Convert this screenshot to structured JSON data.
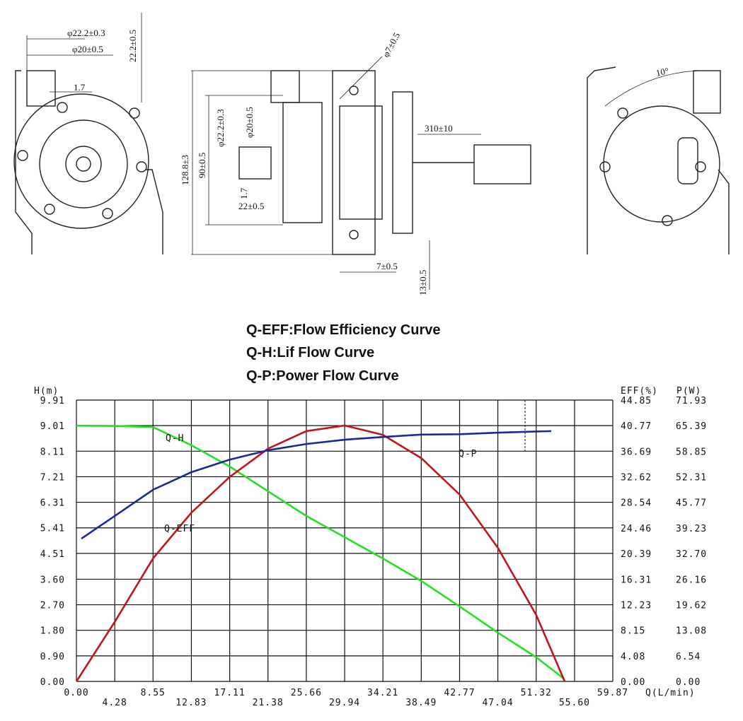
{
  "drawings": {
    "front": [
      "φ22.2±0.3",
      "φ20±0.5",
      "22.2±0.5",
      "1.7"
    ],
    "side": [
      "φ7±0.5",
      "128.8±3",
      "90±0.5",
      "φ22.2±0.3",
      "φ20±0.5",
      "1.7",
      "22±0.5",
      "310±10",
      "7±0.5",
      "13±0.5"
    ],
    "back": [
      "10°"
    ]
  },
  "chart_data": {
    "type": "line",
    "titles": [
      "Q-EFF:Flow Efficiency Curve",
      "Q-H:Lif Flow Curve",
      "Q-P:Power Flow Curve"
    ],
    "x_label": "Q(L/min)",
    "y_label": "H(m)",
    "y2_label": "EFF(%)",
    "y3_label": "P(W)",
    "grid": true,
    "xlim": [
      0,
      59.87
    ],
    "xticks": [
      {
        "value": 0,
        "label": "0.00"
      },
      4.28,
      8.55,
      12.83,
      17.11,
      21.38,
      25.66,
      29.94,
      34.21,
      38.49,
      42.77,
      47.04,
      51.32,
      {
        "value": 55.6,
        "label": "55.60"
      },
      59.87
    ],
    "ylim": [
      0,
      9.91
    ],
    "yticks": [
      {
        "value": 0,
        "label": "0.00"
      },
      {
        "value": 0.9,
        "label": "0.90"
      },
      {
        "value": 1.8,
        "label": "1.80"
      },
      {
        "value": 2.7,
        "label": "2.70"
      },
      {
        "value": 3.6,
        "label": "3.60"
      },
      4.51,
      5.41,
      6.31,
      7.21,
      8.11,
      9.01,
      9.91
    ],
    "y2lim": [
      0,
      44.85
    ],
    "y2ticks": [
      {
        "value": 0,
        "label": "0.00"
      },
      4.08,
      8.15,
      12.23,
      16.31,
      20.39,
      24.46,
      28.54,
      32.62,
      36.69,
      40.77,
      44.85
    ],
    "y3lim": [
      0,
      71.93
    ],
    "y3ticks": [
      {
        "value": 0,
        "label": "0.00"
      },
      6.54,
      13.08,
      19.62,
      26.16,
      {
        "value": 32.7,
        "label": "32.70"
      },
      39.23,
      45.77,
      52.31,
      58.85,
      65.39,
      71.93
    ],
    "series": [
      {
        "name": "Q-H",
        "color": "#22e022",
        "axis": "y",
        "x": [
          0,
          4.28,
          8.55,
          12.83,
          17.11,
          21.38,
          25.66,
          29.94,
          34.21,
          38.49,
          42.77,
          47.04,
          51.32,
          54.4
        ],
        "values": [
          9.01,
          9.0,
          8.96,
          8.32,
          7.57,
          6.7,
          5.83,
          5.08,
          4.33,
          3.54,
          2.64,
          1.72,
          0.85,
          0.1
        ]
      },
      {
        "name": "Q-EFF",
        "color": "#c0141e",
        "axis": "y2",
        "x": [
          0,
          4.28,
          8.55,
          12.83,
          17.11,
          21.38,
          25.66,
          29.94,
          34.21,
          38.49,
          42.77,
          47.04,
          51.32,
          54.5
        ],
        "values": [
          0,
          9.5,
          19.6,
          26.9,
          32.6,
          37.1,
          39.9,
          40.8,
          39.3,
          35.6,
          29.8,
          21.3,
          10.6,
          0
        ]
      },
      {
        "name": "Q-P",
        "color": "#1a2a9a",
        "axis": "y3",
        "x": [
          0.55,
          4.28,
          8.55,
          12.83,
          17.11,
          21.38,
          25.66,
          29.94,
          34.21,
          38.49,
          42.77,
          47.04,
          53.0
        ],
        "values": [
          36.5,
          42.3,
          49.0,
          53.5,
          56.7,
          59.1,
          60.7,
          61.8,
          62.5,
          63.1,
          63.2,
          63.6,
          64.0
        ]
      }
    ]
  }
}
